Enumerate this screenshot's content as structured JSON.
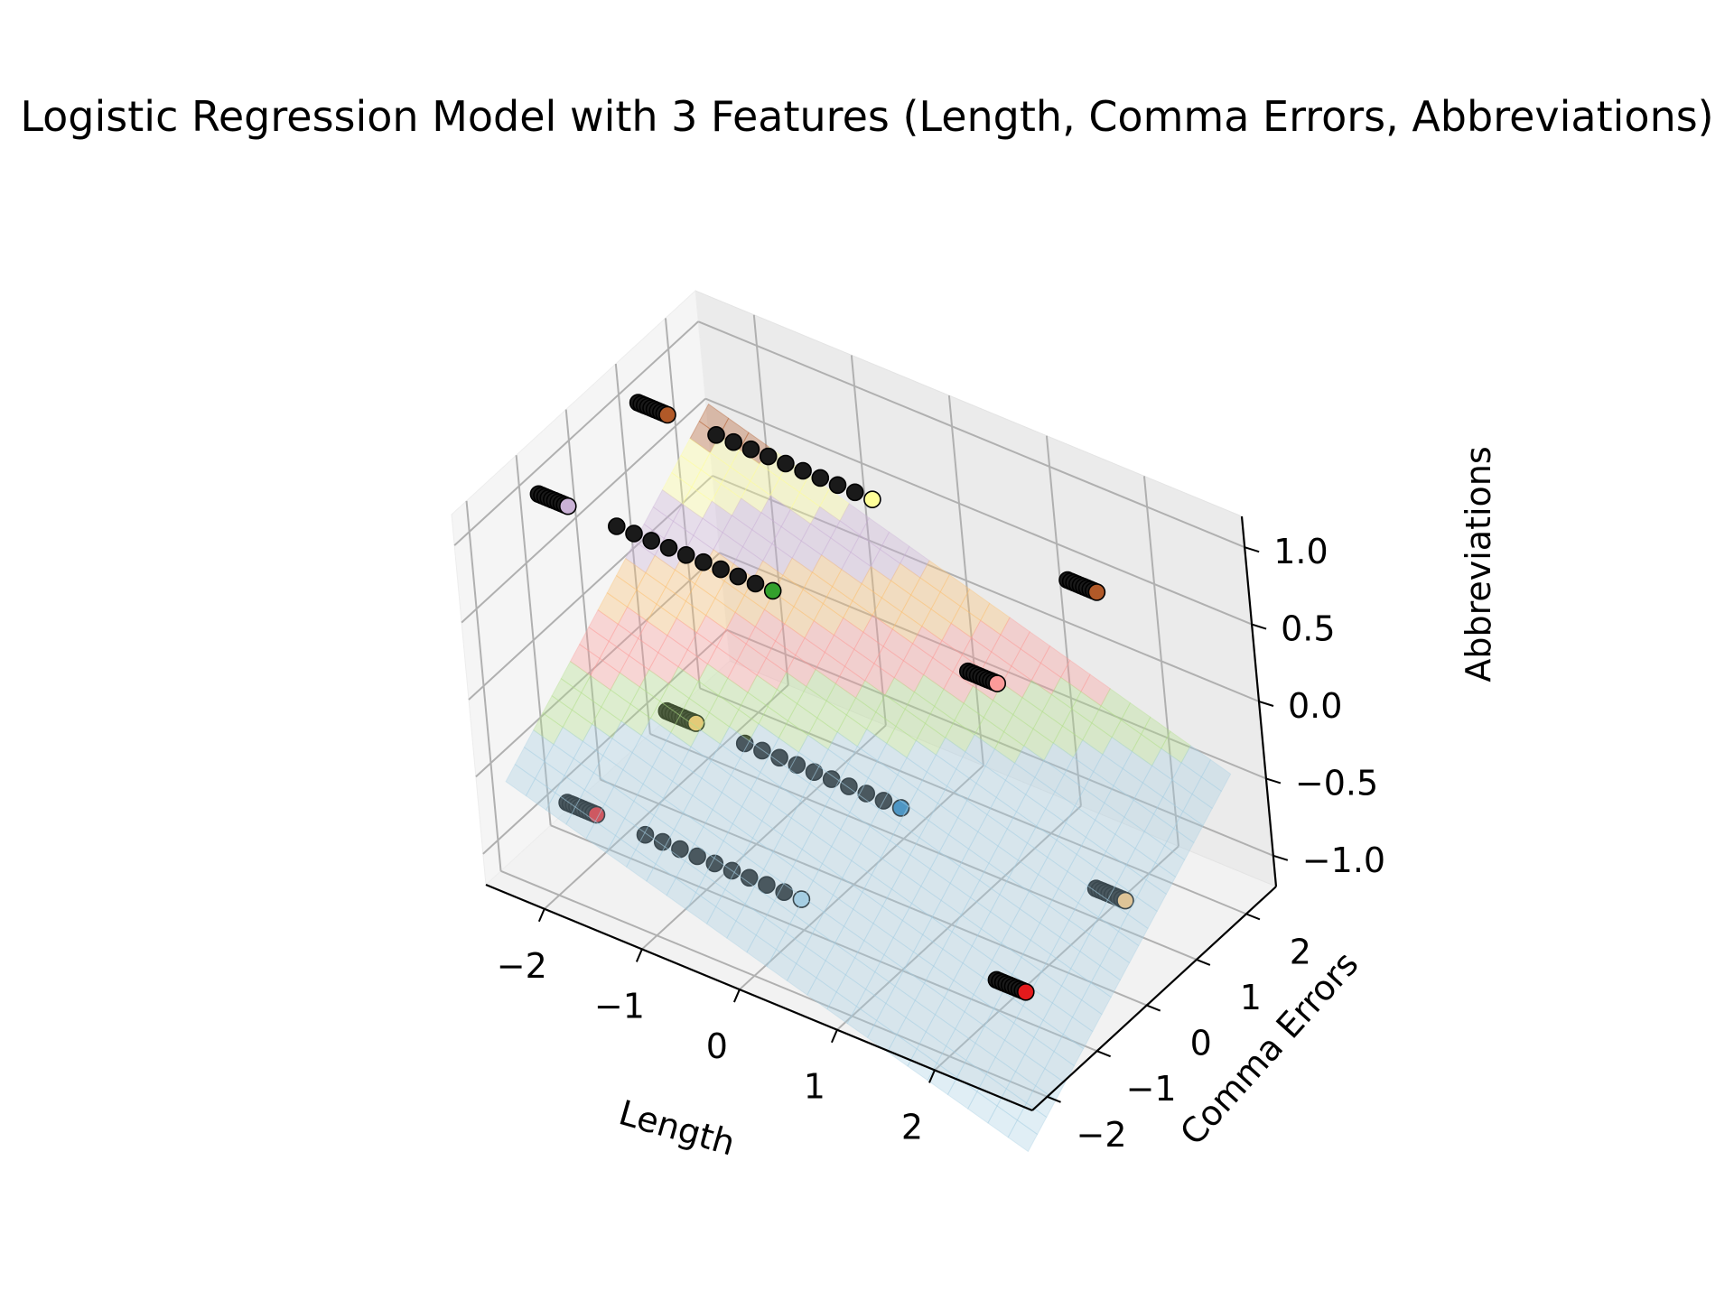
{
  "chart_data": {
    "type": "scatter3d",
    "title": "Logistic Regression Model with 3 Features (Length, Comma Errors, Abbreviations)",
    "xlabel": "Length",
    "ylabel": "Comma Errors",
    "zlabel": "Abbreviations",
    "xlim": [
      -2.6,
      3.0
    ],
    "ylim": [
      -2.3,
      2.6
    ],
    "zlim": [
      -1.2,
      1.2
    ],
    "xticks": [
      -2,
      -1,
      0,
      1,
      2
    ],
    "yticks": [
      -2,
      -1,
      0,
      1,
      2
    ],
    "zticks": [
      -1.0,
      -0.5,
      0.0,
      0.5,
      1.0
    ],
    "xtick_labels": [
      "−2",
      "−1",
      "0",
      "1",
      "2"
    ],
    "ytick_labels": [
      "−2",
      "−1",
      "0",
      "1",
      "2"
    ],
    "ztick_labels": [
      "−1.0",
      "−0.5",
      "0.0",
      "0.5",
      "1.0"
    ],
    "grid": true,
    "surface": {
      "description_type": "decision-surface",
      "colormap": "Paired",
      "alpha": 0.35,
      "band_colors": [
        "#a6cee3",
        "#b2df8a",
        "#fb9a99",
        "#fdbf6f",
        "#cab2d6",
        "#ffff99",
        "#b15928"
      ]
    },
    "clusters": [
      {
        "x": [
          -2.4,
          -2.1
        ],
        "y": [
          -1.0,
          -1.0
        ],
        "z": [
          -1.0,
          -1.0
        ],
        "color": "#e31a1c"
      },
      {
        "x": [
          -1.6,
          0.0
        ],
        "y": [
          -1.0,
          -1.0
        ],
        "z": [
          -1.0,
          -1.0
        ],
        "color": "#a6cee3"
      },
      {
        "x": [
          2.0,
          2.3
        ],
        "y": [
          -1.0,
          -1.0
        ],
        "z": [
          -1.0,
          -1.0
        ],
        "color": "#e31a1c"
      },
      {
        "x": [
          -2.4,
          -2.1
        ],
        "y": [
          1.0,
          1.0
        ],
        "z": [
          -1.0,
          -1.0
        ],
        "color": "#fdbf6f"
      },
      {
        "x": [
          -1.6,
          0.0
        ],
        "y": [
          1.0,
          1.0
        ],
        "z": [
          -1.0,
          -1.0
        ],
        "color": "#1f78b4"
      },
      {
        "x": [
          2.0,
          2.3
        ],
        "y": [
          1.0,
          1.0
        ],
        "z": [
          -1.0,
          -1.0
        ],
        "color": "#fdbf6f"
      },
      {
        "x": [
          -2.4,
          -2.1
        ],
        "y": [
          -1.0,
          -1.0
        ],
        "z": [
          1.0,
          1.0
        ],
        "color": "#cab2d6"
      },
      {
        "x": [
          -1.6,
          0.0
        ],
        "y": [
          -1.0,
          -1.0
        ],
        "z": [
          1.0,
          1.0
        ],
        "color": "#33a02c"
      },
      {
        "x": [
          2.0,
          2.3
        ],
        "y": [
          -1.0,
          -1.0
        ],
        "z": [
          1.0,
          1.0
        ],
        "color": "#fb9a99"
      },
      {
        "x": [
          -2.4,
          -2.1
        ],
        "y": [
          1.0,
          1.0
        ],
        "z": [
          1.0,
          1.0
        ],
        "color": "#b15928"
      },
      {
        "x": [
          -1.6,
          0.0
        ],
        "y": [
          1.0,
          1.0
        ],
        "z": [
          1.0,
          1.0
        ],
        "color": "#ffff99"
      },
      {
        "x": [
          2.0,
          2.3
        ],
        "y": [
          1.0,
          1.0
        ],
        "z": [
          1.0,
          1.0
        ],
        "color": "#b15928"
      }
    ]
  }
}
